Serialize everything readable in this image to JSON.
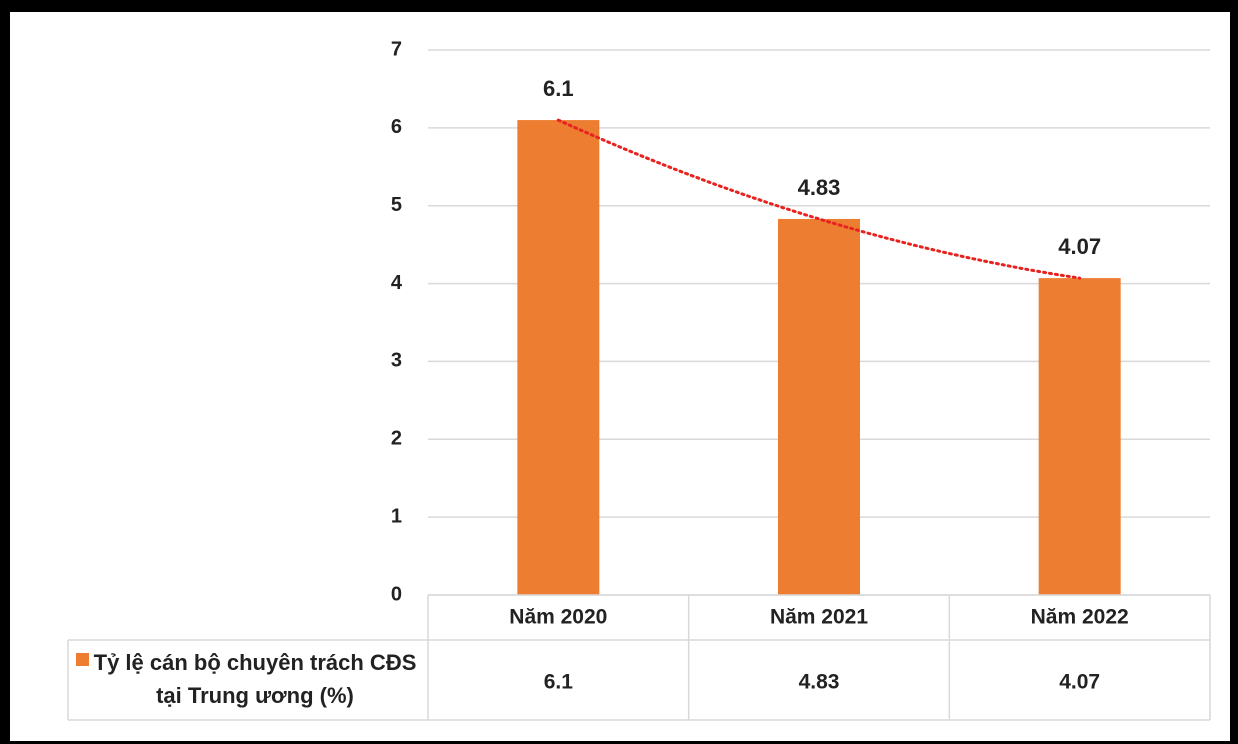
{
  "chart_data": {
    "type": "bar",
    "categories": [
      "Năm 2020",
      "Năm 2021",
      "Năm 2022"
    ],
    "series": [
      {
        "name": "Tỷ lệ cán bộ chuyên trách CĐS tại Trung ương (%)",
        "color": "#ed7d31",
        "values": [
          6.1,
          4.83,
          4.07
        ]
      }
    ],
    "ylim": [
      0,
      7
    ],
    "yticks": [
      0,
      1,
      2,
      3,
      4,
      5,
      6,
      7
    ],
    "grid": true,
    "trendline_color": "#e8231f",
    "data_table": true
  }
}
